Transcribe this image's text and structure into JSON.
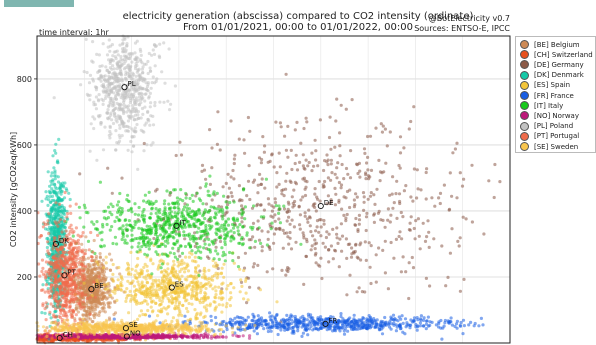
{
  "header": {
    "title_line1": "electricity generation (abscissa) compared to CO2 intensity (ordinate)",
    "title_line2": "From 01/01/2021, 00:00 to 01/01/2022, 00:00",
    "credit": "@BotElectricity v0.7",
    "sources": "Sources: ENTSO-E, IPCC",
    "time_interval": "time interval: 1hr"
  },
  "chart_data": {
    "type": "scatter",
    "ylabel": "CO2 intensity [gCO2eq/kWh]",
    "ylim": [
      0,
      930
    ],
    "yticks": [
      200,
      400,
      600,
      800
    ],
    "xlim": [
      0,
      100
    ],
    "xticks_visible": false,
    "grid": true,
    "legend_placement": "outside-right",
    "series": [
      {
        "name": "[BE] Belgium",
        "label": "BE",
        "color": "#cd8a56",
        "center": [
          11.5,
          163
        ],
        "spread": [
          2.2,
          48
        ]
      },
      {
        "name": "[CH] Switzerland",
        "label": "CH",
        "color": "#e7511e",
        "center": [
          4.8,
          15
        ],
        "spread": [
          8.0,
          5
        ]
      },
      {
        "name": "[DE] Germany",
        "label": "DE",
        "color": "#8b5a48",
        "center": [
          60.0,
          415
        ],
        "spread": [
          16.0,
          120
        ]
      },
      {
        "name": "[DK] Denmark",
        "label": "DK",
        "color": "#16c9a8",
        "center": [
          4.0,
          300
        ],
        "spread": [
          1.0,
          110
        ]
      },
      {
        "name": "[ES] Spain",
        "label": "ES",
        "color": "#f3c53a",
        "center": [
          28.5,
          168
        ],
        "spread": [
          6.5,
          45
        ]
      },
      {
        "name": "[FR] France",
        "label": "FR",
        "color": "#1a5ee3",
        "center": [
          61.0,
          58
        ],
        "spread": [
          14.0,
          12
        ]
      },
      {
        "name": "[IT] Italy",
        "label": "IT",
        "color": "#19c91d",
        "center": [
          29.5,
          355
        ],
        "spread": [
          8.5,
          48
        ]
      },
      {
        "name": "[NO] Norway",
        "label": "NO",
        "color": "#bd1a7a",
        "center": [
          19.0,
          20
        ],
        "spread": [
          8.5,
          3
        ]
      },
      {
        "name": "[PL] Poland",
        "label": "PL",
        "color": "#c2c2c2",
        "center": [
          18.5,
          775
        ],
        "spread": [
          3.5,
          80
        ]
      },
      {
        "name": "[PT] Portugal",
        "label": "PT",
        "color": "#f06c4c",
        "center": [
          5.8,
          205
        ],
        "spread": [
          2.2,
          80
        ]
      },
      {
        "name": "[SE] Sweden",
        "label": "SE",
        "color": "#f8c54e",
        "center": [
          18.8,
          45
        ],
        "spread": [
          9.0,
          9
        ]
      }
    ]
  }
}
